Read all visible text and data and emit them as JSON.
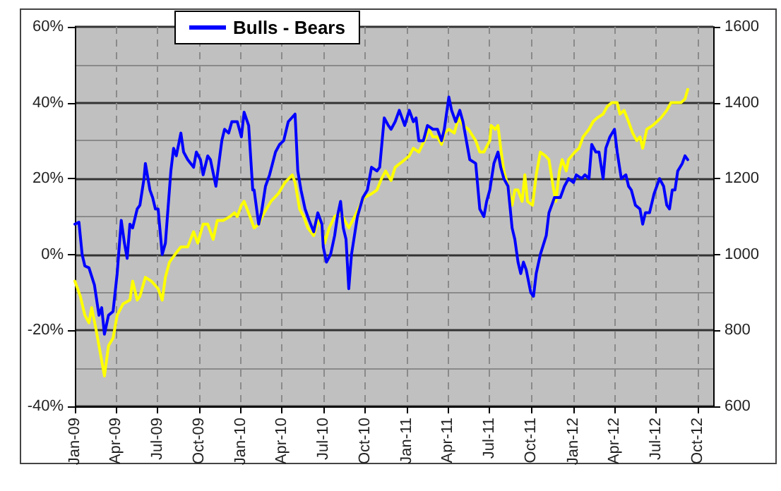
{
  "chart_data": {
    "type": "line",
    "xlim": [
      "2009-01-01",
      "2012-11-04"
    ],
    "xticks": [
      {
        "value": "2009-01-01",
        "label": "Jan-09"
      },
      {
        "value": "2009-04-01",
        "label": "Apr-09"
      },
      {
        "value": "2009-07-01",
        "label": "Jul-09"
      },
      {
        "value": "2009-10-01",
        "label": "Oct-09"
      },
      {
        "value": "2010-01-01",
        "label": "Jan-10"
      },
      {
        "value": "2010-04-01",
        "label": "Apr-10"
      },
      {
        "value": "2010-07-01",
        "label": "Jul-10"
      },
      {
        "value": "2010-10-01",
        "label": "Oct-10"
      },
      {
        "value": "2011-01-01",
        "label": "Jan-11"
      },
      {
        "value": "2011-04-01",
        "label": "Apr-11"
      },
      {
        "value": "2011-07-01",
        "label": "Jul-11"
      },
      {
        "value": "2011-10-01",
        "label": "Oct-11"
      },
      {
        "value": "2012-01-01",
        "label": "Jan-12"
      },
      {
        "value": "2012-04-01",
        "label": "Apr-12"
      },
      {
        "value": "2012-07-01",
        "label": "Jul-12"
      },
      {
        "value": "2012-10-01",
        "label": "Oct-12"
      }
    ],
    "ylim": [
      -40,
      60
    ],
    "yticks": [
      {
        "value": -40,
        "label": "-40%"
      },
      {
        "value": -20,
        "label": "-20%"
      },
      {
        "value": 0,
        "label": "0%"
      },
      {
        "value": 20,
        "label": "20%"
      },
      {
        "value": 40,
        "label": "40%"
      },
      {
        "value": 60,
        "label": "60%"
      }
    ],
    "y2lim": [
      600,
      1600
    ],
    "y2ticks": [
      600,
      800,
      1000,
      1200,
      1400,
      1600
    ],
    "grid": true,
    "legend": "top",
    "marker": "none",
    "line_style": "solid",
    "series": [
      {
        "name": "Bulls - Bears",
        "color": "#0000ff",
        "x": [
          "2009-01-01",
          "2009-01-10",
          "2009-01-17",
          "2009-01-23",
          "2009-02-01",
          "2009-02-13",
          "2009-02-23",
          "2009-03-01",
          "2009-03-07",
          "2009-03-16",
          "2009-03-26",
          "2009-04-04",
          "2009-04-13",
          "2009-04-20",
          "2009-04-26",
          "2009-05-02",
          "2009-05-08",
          "2009-05-18",
          "2009-05-24",
          "2009-06-02",
          "2009-06-05",
          "2009-06-15",
          "2009-06-21",
          "2009-06-27",
          "2009-07-03",
          "2009-07-12",
          "2009-07-19",
          "2009-07-31",
          "2009-08-06",
          "2009-08-12",
          "2009-08-22",
          "2009-08-28",
          "2009-09-06",
          "2009-09-19",
          "2009-09-25",
          "2009-10-04",
          "2009-10-10",
          "2009-10-20",
          "2009-10-26",
          "2009-11-07",
          "2009-11-20",
          "2009-11-26",
          "2009-12-05",
          "2009-12-12",
          "2009-12-24",
          "2010-01-02",
          "2010-01-08",
          "2010-01-18",
          "2010-01-27",
          "2010-01-30",
          "2010-02-09",
          "2010-02-15",
          "2010-02-24",
          "2010-03-05",
          "2010-03-18",
          "2010-03-27",
          "2010-04-05",
          "2010-04-15",
          "2010-04-30",
          "2010-05-06",
          "2010-05-13",
          "2010-05-22",
          "2010-05-31",
          "2010-06-10",
          "2010-06-19",
          "2010-06-28",
          "2010-07-01",
          "2010-07-08",
          "2010-07-17",
          "2010-07-26",
          "2010-08-01",
          "2010-08-08",
          "2010-08-14",
          "2010-08-20",
          "2010-08-26",
          "2010-09-01",
          "2010-09-14",
          "2010-09-26",
          "2010-10-06",
          "2010-10-15",
          "2010-10-27",
          "2010-11-02",
          "2010-11-12",
          "2010-11-21",
          "2010-11-27",
          "2010-12-06",
          "2010-12-15",
          "2010-12-27",
          "2011-01-06",
          "2011-01-15",
          "2011-01-21",
          "2011-01-27",
          "2011-02-06",
          "2011-02-15",
          "2011-02-27",
          "2011-03-09",
          "2011-03-18",
          "2011-03-24",
          "2011-04-03",
          "2011-04-09",
          "2011-04-18",
          "2011-04-27",
          "2011-05-04",
          "2011-05-13",
          "2011-05-19",
          "2011-06-01",
          "2011-06-10",
          "2011-06-19",
          "2011-06-25",
          "2011-07-02",
          "2011-07-11",
          "2011-07-20",
          "2011-07-26",
          "2011-08-02",
          "2011-08-11",
          "2011-08-20",
          "2011-08-26",
          "2011-09-02",
          "2011-09-08",
          "2011-09-14",
          "2011-09-20",
          "2011-09-30",
          "2011-10-06",
          "2011-10-12",
          "2011-10-21",
          "2011-11-03",
          "2011-11-09",
          "2011-11-21",
          "2011-12-04",
          "2011-12-13",
          "2011-12-22",
          "2012-01-02",
          "2012-01-08",
          "2012-01-20",
          "2012-01-27",
          "2012-02-05",
          "2012-02-11",
          "2012-02-20",
          "2012-02-27",
          "2012-03-07",
          "2012-03-13",
          "2012-03-22",
          "2012-04-01",
          "2012-04-07",
          "2012-04-16",
          "2012-04-26",
          "2012-05-02",
          "2012-05-08",
          "2012-05-17",
          "2012-05-27",
          "2012-06-02",
          "2012-06-08",
          "2012-06-17",
          "2012-06-27",
          "2012-07-09",
          "2012-07-18",
          "2012-07-25",
          "2012-07-31",
          "2012-08-06",
          "2012-08-12",
          "2012-08-18",
          "2012-08-28",
          "2012-09-03",
          "2012-09-09"
        ],
        "values": [
          8,
          8.5,
          0,
          -3,
          -3.5,
          -8,
          -16,
          -14,
          -21,
          -16,
          -15,
          -5,
          9,
          3,
          -1,
          8,
          7,
          12,
          13,
          20,
          24,
          17,
          15,
          12,
          12,
          0,
          3,
          22,
          28,
          26,
          32,
          27,
          25,
          23,
          27,
          25,
          21,
          26,
          25,
          18,
          30,
          33,
          32,
          35,
          35,
          31,
          37.5,
          34,
          17,
          17,
          8,
          11,
          18,
          21,
          27,
          29,
          30,
          35,
          37,
          22,
          17,
          12,
          9,
          6,
          11,
          8,
          2,
          -2,
          0,
          5,
          10,
          14,
          7,
          4,
          -9,
          0,
          10,
          15,
          17,
          23,
          22,
          23,
          36,
          34,
          33,
          35,
          38,
          34,
          38,
          35,
          36,
          30,
          30,
          34,
          33,
          33,
          30,
          33,
          41.5,
          38,
          35,
          38,
          35,
          29,
          25,
          24,
          12,
          10,
          14,
          17,
          24,
          27,
          23,
          20,
          18,
          7,
          4,
          -2,
          -5,
          -2,
          -4,
          -10,
          -11,
          -5,
          0,
          5,
          11,
          15,
          15,
          18,
          20,
          19,
          21,
          20,
          21,
          20,
          29,
          27,
          27,
          20,
          28,
          31,
          33,
          27,
          20,
          21,
          18,
          17,
          13,
          12,
          8,
          11,
          11,
          16,
          20,
          18,
          13,
          12,
          17,
          17,
          22,
          24,
          26,
          25
        ]
      },
      {
        "color": "#ffff00",
        "axis": "y2",
        "x": [
          "2009-01-01",
          "2009-01-13",
          "2009-01-23",
          "2009-02-01",
          "2009-02-07",
          "2009-02-17",
          "2009-03-01",
          "2009-03-07",
          "2009-03-16",
          "2009-03-26",
          "2009-04-04",
          "2009-04-17",
          "2009-05-02",
          "2009-05-08",
          "2009-05-18",
          "2009-05-24",
          "2009-06-05",
          "2009-06-18",
          "2009-07-03",
          "2009-07-12",
          "2009-07-19",
          "2009-07-28",
          "2009-08-09",
          "2009-08-22",
          "2009-09-06",
          "2009-09-19",
          "2009-09-28",
          "2009-10-10",
          "2009-10-20",
          "2009-11-01",
          "2009-11-10",
          "2009-11-23",
          "2009-12-08",
          "2009-12-18",
          "2009-12-24",
          "2010-01-02",
          "2010-01-08",
          "2010-01-21",
          "2010-01-30",
          "2010-02-09",
          "2010-02-21",
          "2010-03-08",
          "2010-03-24",
          "2010-04-08",
          "2010-04-24",
          "2010-04-30",
          "2010-05-10",
          "2010-05-19",
          "2010-05-28",
          "2010-06-10",
          "2010-06-19",
          "2010-06-25",
          "2010-07-04",
          "2010-07-14",
          "2010-07-26",
          "2010-08-08",
          "2010-08-17",
          "2010-08-26",
          "2010-09-08",
          "2010-09-20",
          "2010-09-29",
          "2010-10-15",
          "2010-10-27",
          "2010-11-06",
          "2010-11-15",
          "2010-11-27",
          "2010-12-06",
          "2010-12-22",
          "2011-01-06",
          "2011-01-15",
          "2011-01-27",
          "2011-02-12",
          "2011-02-18",
          "2011-02-27",
          "2011-03-09",
          "2011-03-18",
          "2011-03-24",
          "2011-04-03",
          "2011-04-15",
          "2011-04-24",
          "2011-05-04",
          "2011-05-16",
          "2011-06-01",
          "2011-06-10",
          "2011-06-19",
          "2011-07-02",
          "2011-07-05",
          "2011-07-14",
          "2011-07-20",
          "2011-07-26",
          "2011-08-02",
          "2011-08-11",
          "2011-08-20",
          "2011-08-26",
          "2011-09-02",
          "2011-09-11",
          "2011-09-17",
          "2011-09-23",
          "2011-10-04",
          "2011-10-12",
          "2011-10-21",
          "2011-11-01",
          "2011-11-09",
          "2011-11-18",
          "2011-11-24",
          "2011-12-02",
          "2011-12-08",
          "2011-12-17",
          "2011-12-22",
          "2012-01-05",
          "2012-01-14",
          "2012-01-23",
          "2012-02-05",
          "2012-02-14",
          "2012-02-23",
          "2012-03-07",
          "2012-03-16",
          "2012-03-26",
          "2012-04-07",
          "2012-04-13",
          "2012-04-22",
          "2012-05-02",
          "2012-05-11",
          "2012-05-20",
          "2012-05-27",
          "2012-06-02",
          "2012-06-11",
          "2012-06-24",
          "2012-07-03",
          "2012-07-12",
          "2012-07-25",
          "2012-08-03",
          "2012-08-12",
          "2012-08-25",
          "2012-09-03",
          "2012-09-09"
        ],
        "values": [
          930,
          890,
          840,
          820,
          860,
          800,
          720,
          680,
          760,
          780,
          840,
          870,
          880,
          930,
          880,
          890,
          940,
          930,
          910,
          880,
          940,
          980,
          1000,
          1020,
          1020,
          1060,
          1030,
          1080,
          1080,
          1040,
          1090,
          1090,
          1100,
          1110,
          1100,
          1130,
          1140,
          1100,
          1070,
          1080,
          1110,
          1140,
          1160,
          1190,
          1210,
          1190,
          1120,
          1100,
          1070,
          1050,
          1090,
          1080,
          1030,
          1070,
          1100,
          1110,
          1090,
          1070,
          1100,
          1130,
          1150,
          1160,
          1170,
          1200,
          1220,
          1195,
          1230,
          1245,
          1260,
          1280,
          1270,
          1310,
          1330,
          1310,
          1310,
          1290,
          1320,
          1330,
          1320,
          1360,
          1340,
          1330,
          1300,
          1270,
          1270,
          1300,
          1340,
          1330,
          1340,
          1280,
          1220,
          1180,
          1130,
          1170,
          1170,
          1140,
          1210,
          1140,
          1130,
          1210,
          1270,
          1260,
          1250,
          1180,
          1140,
          1220,
          1250,
          1220,
          1250,
          1270,
          1280,
          1310,
          1330,
          1350,
          1360,
          1370,
          1390,
          1400,
          1400,
          1370,
          1380,
          1350,
          1320,
          1300,
          1310,
          1280,
          1330,
          1340,
          1350,
          1360,
          1380,
          1400,
          1400,
          1400,
          1410,
          1435
        ]
      }
    ]
  }
}
